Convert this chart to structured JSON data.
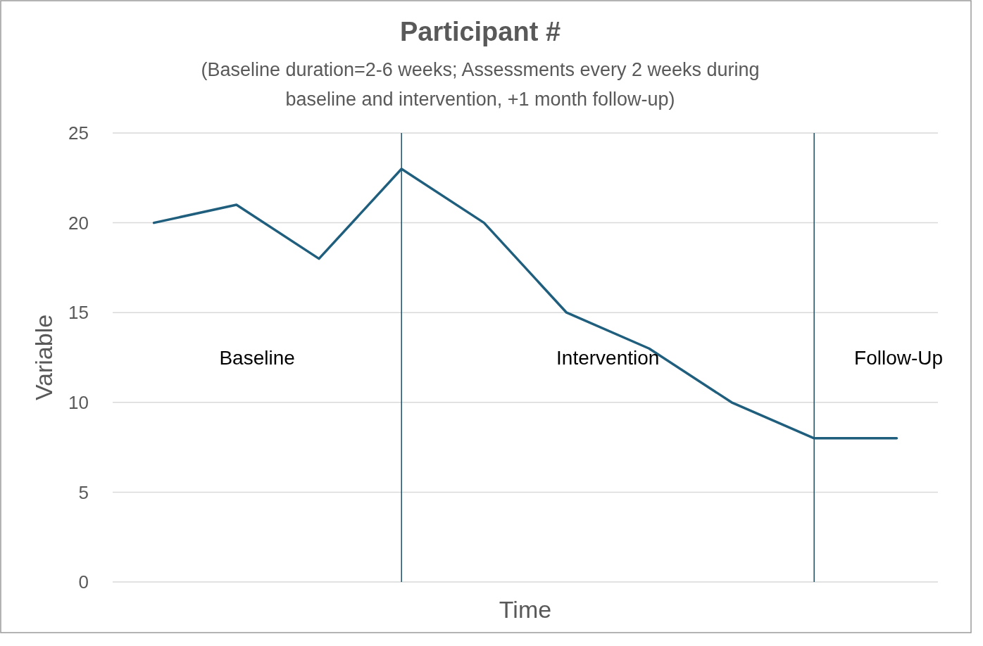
{
  "chart_data": {
    "type": "line",
    "title": "Participant #",
    "subtitle": "(Baseline duration=2-6 weeks; Assessments every 2 weeks during baseline and intervention, +1 month follow-up)",
    "xlabel": "Time",
    "ylabel": "Variable",
    "categories": [
      null,
      null,
      null,
      null,
      null,
      null,
      null,
      null,
      null,
      null
    ],
    "series": [
      {
        "color": "#1f5f7d",
        "values": [
          20,
          21,
          18,
          23,
          20,
          15,
          13,
          10,
          8,
          8
        ]
      }
    ],
    "ylim": [
      0,
      25
    ],
    "yticks": [
      0,
      5,
      10,
      15,
      20,
      25
    ],
    "grid": "y",
    "tick_labels": "y",
    "marker": "none",
    "line_style": "solid",
    "annotations": [
      "Baseline",
      "Intervention",
      "Follow-Up"
    ]
  }
}
